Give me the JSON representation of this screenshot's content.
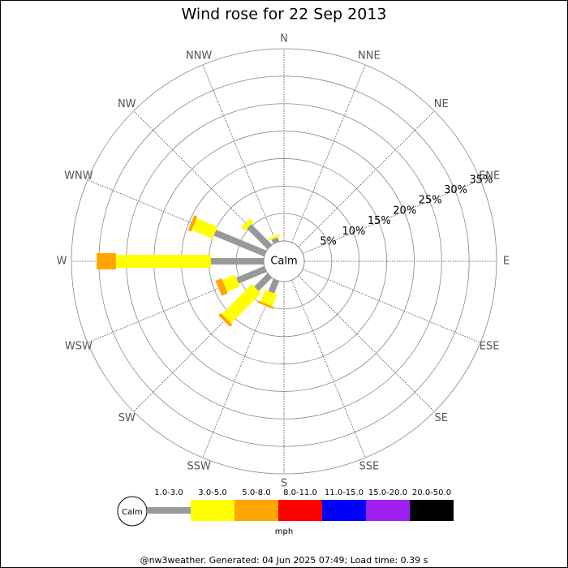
{
  "chart_data": {
    "type": "windrose",
    "title": "Wind rose for 22 Sep 2013",
    "directions": [
      "N",
      "NNE",
      "NE",
      "ENE",
      "E",
      "ESE",
      "SE",
      "SSE",
      "S",
      "SSW",
      "SW",
      "WSW",
      "W",
      "WNW",
      "NW",
      "NNW"
    ],
    "calm_label": "Calm",
    "rlim": [
      0,
      35
    ],
    "rticks": [
      {
        "value": 5,
        "label": "5%"
      },
      {
        "value": 10,
        "label": "10%"
      },
      {
        "value": 15,
        "label": "15%"
      },
      {
        "value": 20,
        "label": "20%"
      },
      {
        "value": 25,
        "label": "25%"
      },
      {
        "value": 30,
        "label": "30%"
      },
      {
        "value": 35,
        "label": "35%"
      }
    ],
    "series": [
      {
        "name": "1.0-3.0",
        "color": "#999999",
        "values": [
          0,
          0,
          0,
          0,
          0,
          0,
          0,
          0,
          0,
          2.4,
          3.4,
          5.5,
          9.6,
          9.9,
          5.3,
          0.8
        ]
      },
      {
        "name": "3.0-5.0",
        "color": "#ffff00",
        "values": [
          0,
          0,
          0,
          0,
          0,
          0,
          0,
          0,
          0,
          2.3,
          7.7,
          2.5,
          17.3,
          4.1,
          0.9,
          0.4
        ]
      },
      {
        "name": "5.0-8.0",
        "color": "#ffa500",
        "values": [
          0,
          0,
          0,
          0,
          0,
          0,
          0,
          0,
          0,
          0.4,
          0.6,
          1.2,
          3.5,
          0.6,
          0,
          0
        ]
      },
      {
        "name": "8.0-11.0",
        "color": "#ff0000",
        "values": [
          0,
          0,
          0,
          0,
          0,
          0,
          0,
          0,
          0,
          0,
          0,
          0,
          0,
          0,
          0,
          0
        ]
      },
      {
        "name": "11.0-15.0",
        "color": "#0000ff",
        "values": [
          0,
          0,
          0,
          0,
          0,
          0,
          0,
          0,
          0,
          0,
          0,
          0,
          0,
          0,
          0,
          0
        ]
      },
      {
        "name": "15.0-20.0",
        "color": "#a020f0",
        "values": [
          0,
          0,
          0,
          0,
          0,
          0,
          0,
          0,
          0,
          0,
          0,
          0,
          0,
          0,
          0,
          0
        ]
      },
      {
        "name": "20.0-50.0",
        "color": "#000000",
        "values": [
          0,
          0,
          0,
          0,
          0,
          0,
          0,
          0,
          0,
          0,
          0,
          0,
          0,
          0,
          0,
          0
        ]
      }
    ],
    "legend_title": "mph",
    "footer": "@nw3weather. Generated: 04 Jun 2025 07:49; Load time: 0.39 s"
  }
}
